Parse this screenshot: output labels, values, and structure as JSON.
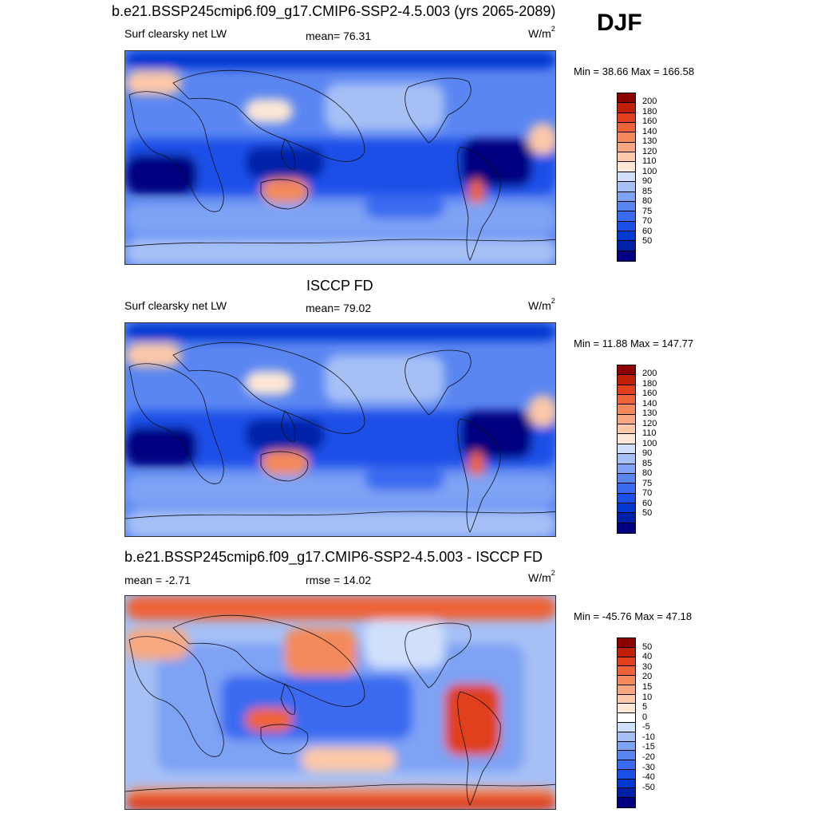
{
  "title": "b.e21.BSSP245cmip6.f09_g17.CMIP6-SSP2-4.5.003 (yrs 2065-2089)",
  "season": "DJF",
  "colors": {
    "abs_scale": [
      "#000080",
      "#0020a8",
      "#0038d0",
      "#1a4fe8",
      "#3a6af0",
      "#5a86f2",
      "#7ea2f4",
      "#a6c0f6",
      "#d0e0fb",
      "#fde7d6",
      "#fcc8a8",
      "#f8a880",
      "#f48a5c",
      "#ee6438",
      "#e0401c",
      "#c02008",
      "#8c0000"
    ],
    "diff_scale": [
      "#000080",
      "#0020a8",
      "#0038d0",
      "#1a4fe8",
      "#3a6af0",
      "#5a86f2",
      "#7ea2f4",
      "#a6c0f6",
      "#d0e0fb",
      "#ffffff",
      "#fde7d6",
      "#fcc8a8",
      "#f8a880",
      "#f48a5c",
      "#ee6438",
      "#e0401c",
      "#c02008",
      "#8c0000"
    ]
  },
  "panels": [
    {
      "heading": "",
      "variable": "Surf clearsky net LW",
      "stat": "mean=  76.31",
      "units": "W/m",
      "units_sup": "2",
      "min_max": "Min =  38.66 Max = 166.58",
      "scale": "abs",
      "colorbar_labels": [
        "200",
        "180",
        "160",
        "140",
        "130",
        "120",
        "110",
        "100",
        "90",
        "85",
        "80",
        "75",
        "70",
        "60",
        "50"
      ]
    },
    {
      "heading": "ISCCP FD",
      "variable": "Surf clearsky net LW",
      "stat": "mean=  79.02",
      "units": "W/m",
      "units_sup": "2",
      "min_max": "Min =  11.88 Max = 147.77",
      "scale": "abs",
      "colorbar_labels": [
        "200",
        "180",
        "160",
        "140",
        "130",
        "120",
        "110",
        "100",
        "90",
        "85",
        "80",
        "75",
        "70",
        "60",
        "50"
      ]
    },
    {
      "heading": "b.e21.BSSP245cmip6.f09_g17.CMIP6-SSP2-4.5.003 - ISCCP FD",
      "variable": "mean =  -2.71",
      "stat": "rmse =  14.02",
      "units": "W/m",
      "units_sup": "2",
      "min_max": "Min = -45.76 Max =  47.18",
      "scale": "diff",
      "colorbar_labels": [
        "50",
        "40",
        "30",
        "20",
        "15",
        "10",
        "5",
        "0",
        "-5",
        "-10",
        "-15",
        "-20",
        "-30",
        "-40",
        "-50"
      ]
    }
  ]
}
